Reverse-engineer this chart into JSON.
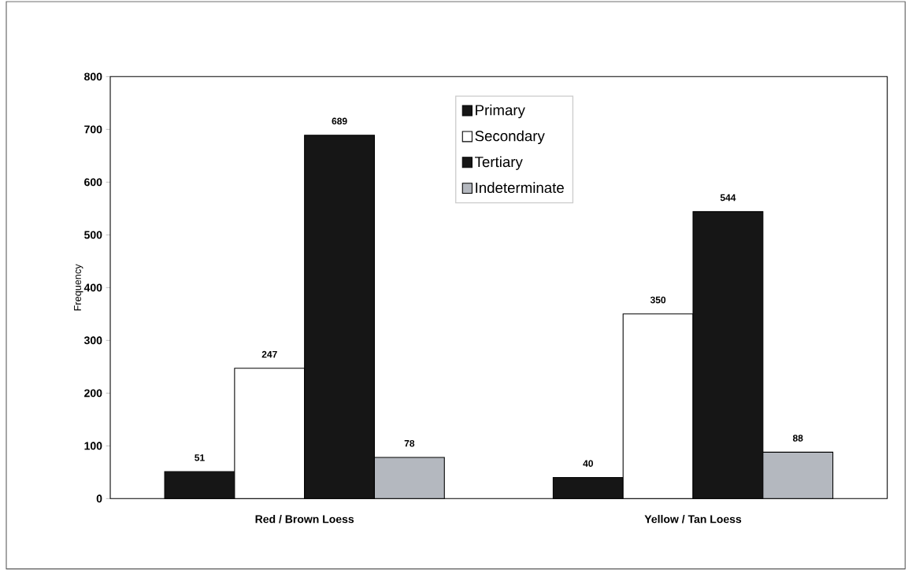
{
  "chart_data": {
    "type": "bar",
    "ylabel": "Frequency",
    "categories": [
      "Red / Brown Loess",
      "Yellow / Tan Loess"
    ],
    "series": [
      {
        "name": "Primary",
        "color": "#161616",
        "values": [
          51,
          40
        ]
      },
      {
        "name": "Secondary",
        "color": "#ffffff",
        "values": [
          247,
          350
        ]
      },
      {
        "name": "Tertiary",
        "color": "#161616",
        "values": [
          689,
          544
        ]
      },
      {
        "name": "Indeterminate",
        "color": "#b4b8bf",
        "values": [
          78,
          88
        ]
      }
    ],
    "ylim": [
      0,
      800
    ],
    "yticks": [
      0,
      100,
      200,
      300,
      400,
      500,
      600,
      700,
      800
    ],
    "data_labels": true,
    "legend": "top",
    "grid": false
  }
}
